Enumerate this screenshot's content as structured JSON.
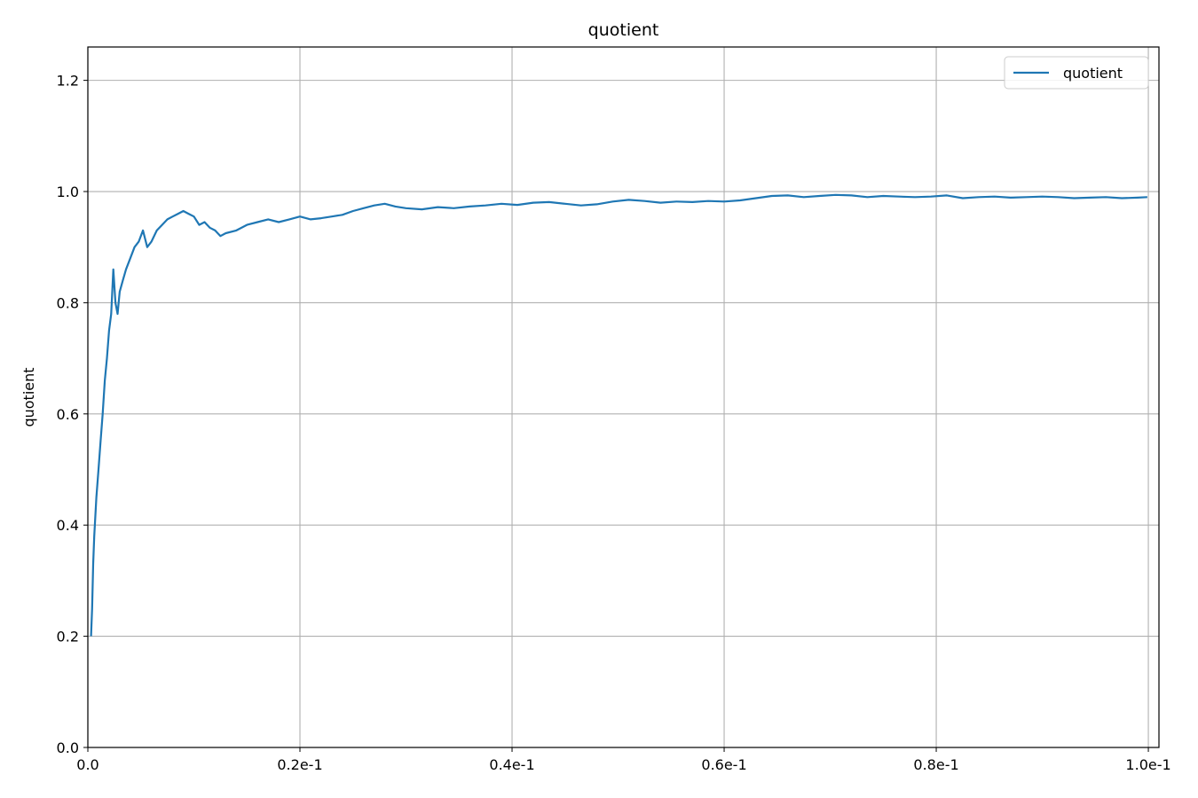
{
  "chart_data": {
    "type": "line",
    "title": "quotient",
    "xlabel": "",
    "ylabel": "quotient",
    "xlim": [
      0.0,
      0.101
    ],
    "ylim": [
      0.0,
      1.26
    ],
    "x_ticks": [
      {
        "value": 0.0,
        "label": "0.0"
      },
      {
        "value": 0.02,
        "label": "0.2e-1"
      },
      {
        "value": 0.04,
        "label": "0.4e-1"
      },
      {
        "value": 0.06,
        "label": "0.6e-1"
      },
      {
        "value": 0.08,
        "label": "0.8e-1"
      },
      {
        "value": 0.1,
        "label": "1.0e-1"
      }
    ],
    "y_ticks": [
      {
        "value": 0.0,
        "label": "0.0"
      },
      {
        "value": 0.2,
        "label": "0.2"
      },
      {
        "value": 0.4,
        "label": "0.4"
      },
      {
        "value": 0.6,
        "label": "0.6"
      },
      {
        "value": 0.8,
        "label": "0.8"
      },
      {
        "value": 1.0,
        "label": "1.0"
      },
      {
        "value": 1.2,
        "label": "1.2"
      }
    ],
    "grid": true,
    "legend_position": "top-right",
    "series": [
      {
        "name": "quotient",
        "color": "#1f77b4",
        "x": [
          0.0003,
          0.0004,
          0.0005,
          0.0006,
          0.0008,
          0.001,
          0.0012,
          0.0014,
          0.0016,
          0.0018,
          0.002,
          0.0022,
          0.0024,
          0.0026,
          0.0028,
          0.003,
          0.0033,
          0.0036,
          0.004,
          0.0044,
          0.0048,
          0.0052,
          0.0056,
          0.006,
          0.0065,
          0.007,
          0.0075,
          0.008,
          0.0085,
          0.009,
          0.0095,
          0.01,
          0.0105,
          0.011,
          0.0115,
          0.012,
          0.0125,
          0.013,
          0.014,
          0.015,
          0.016,
          0.017,
          0.018,
          0.019,
          0.02,
          0.021,
          0.022,
          0.023,
          0.024,
          0.025,
          0.026,
          0.027,
          0.028,
          0.029,
          0.03,
          0.0315,
          0.033,
          0.0345,
          0.036,
          0.0375,
          0.039,
          0.0405,
          0.042,
          0.0435,
          0.045,
          0.0465,
          0.048,
          0.0495,
          0.051,
          0.0525,
          0.054,
          0.0555,
          0.057,
          0.0585,
          0.06,
          0.0615,
          0.063,
          0.0645,
          0.066,
          0.0675,
          0.069,
          0.0705,
          0.072,
          0.0735,
          0.075,
          0.0765,
          0.078,
          0.0795,
          0.081,
          0.0825,
          0.084,
          0.0855,
          0.087,
          0.0885,
          0.09,
          0.0915,
          0.093,
          0.0945,
          0.096,
          0.0975,
          0.099,
          0.0999
        ],
        "y": [
          0.2,
          0.25,
          0.33,
          0.38,
          0.45,
          0.5,
          0.55,
          0.6,
          0.66,
          0.7,
          0.75,
          0.78,
          0.86,
          0.8,
          0.78,
          0.82,
          0.84,
          0.86,
          0.88,
          0.9,
          0.91,
          0.93,
          0.9,
          0.91,
          0.93,
          0.94,
          0.95,
          0.955,
          0.96,
          0.965,
          0.96,
          0.955,
          0.94,
          0.945,
          0.935,
          0.93,
          0.92,
          0.925,
          0.93,
          0.94,
          0.945,
          0.95,
          0.945,
          0.95,
          0.955,
          0.95,
          0.952,
          0.955,
          0.958,
          0.965,
          0.97,
          0.975,
          0.978,
          0.973,
          0.97,
          0.968,
          0.972,
          0.97,
          0.973,
          0.975,
          0.978,
          0.976,
          0.98,
          0.981,
          0.978,
          0.975,
          0.977,
          0.982,
          0.985,
          0.983,
          0.98,
          0.982,
          0.981,
          0.983,
          0.982,
          0.984,
          0.988,
          0.992,
          0.993,
          0.99,
          0.992,
          0.994,
          0.993,
          0.99,
          0.992,
          0.991,
          0.99,
          0.991,
          0.993,
          0.988,
          0.99,
          0.991,
          0.989,
          0.99,
          0.991,
          0.99,
          0.988,
          0.989,
          0.99,
          0.988,
          0.989,
          0.99
        ]
      }
    ]
  }
}
